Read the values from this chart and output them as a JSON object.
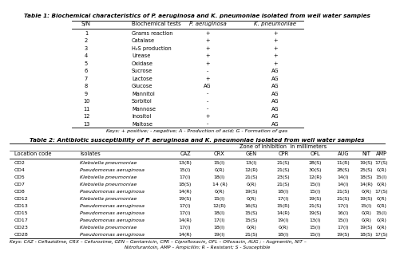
{
  "table1_title": "Table 1: Biochemical characteristics of P. aeruginosa and K. pneumoniae isolated from well water samples",
  "table1_headers": [
    "S/N",
    "Biochemical tests",
    "P. aeruginosa",
    "K. pneumoniae"
  ],
  "table1_rows": [
    [
      "1",
      "Grams reaction",
      "+",
      "+"
    ],
    [
      "2",
      "Catalase",
      "+",
      "+"
    ],
    [
      "3",
      "H₂S production",
      "+",
      "+"
    ],
    [
      "4",
      "Urease",
      "+",
      "+"
    ],
    [
      "5",
      "Oxidase",
      "+",
      "+"
    ],
    [
      "6",
      "Sucrose",
      "-",
      "AG"
    ],
    [
      "7",
      "Lactose",
      "+",
      "AG"
    ],
    [
      "8",
      "Glucose",
      "AG",
      "AG"
    ],
    [
      "9",
      "Mannitol",
      "-",
      "AG"
    ],
    [
      "10",
      "Sorbitol",
      "-",
      "AG"
    ],
    [
      "11",
      "Mannose",
      "-",
      "AG"
    ],
    [
      "12",
      "Inositol",
      "+",
      "AG"
    ],
    [
      "13",
      "Maltose",
      "-",
      "AG"
    ]
  ],
  "table1_keys": "Keys: + positive; - negative; A - Production of acid; G - Formation of gas",
  "table2_title": "Table 2: Antibiotic susceptibility of P. aeruginosa and K. pneumoniae isolated from well water samples",
  "table2_zone_header": "Zone of inhibition  in millimeters",
  "table2_col_headers": [
    "CAZ",
    "CRX",
    "GEN",
    "CPR",
    "OFL",
    "AUG",
    "NIT",
    "AMP"
  ],
  "table2_main_headers": [
    "Location code",
    "Isolates"
  ],
  "table2_rows": [
    [
      "OD2",
      "Klebsiella pneumoniae",
      "13(R)",
      "15(I)",
      "13(I)",
      "21(S)",
      "28(S)",
      "11(R)",
      "19(S)",
      "17(S)"
    ],
    [
      "OD4",
      "Pseudomonas aeruginosa",
      "15(I)",
      "0(R)",
      "12(R)",
      "21(S)",
      "30(S)",
      "28(S)",
      "25(S)",
      "0(R)"
    ],
    [
      "OD5",
      "Klebsiella pneumoniae",
      "17(I)",
      "18(I)",
      "21(S)",
      "23(S)",
      "12(R)",
      "14(I)",
      "18(S)",
      "15(I)"
    ],
    [
      "OD7",
      "Klebsiella pneumoniae",
      "18(S)",
      "14 (R)",
      "0(R)",
      "21(S)",
      "15(I)",
      "14(I)",
      "14(R)",
      "0(R)"
    ],
    [
      "OD8",
      "Pseudomonas aeruginosa",
      "14(R)",
      "0(R)",
      "19(S)",
      "18(I)",
      "15(I)",
      "21(S)",
      "0(R)",
      "17(S)"
    ],
    [
      "OD12",
      "Klebsiella pneumoniae",
      "19(S)",
      "15(I)",
      "0(R)",
      "17(I)",
      "19(S)",
      "21(S)",
      "19(S)",
      "0(R)"
    ],
    [
      "OD13",
      "Pseudomonas aeruginosa",
      "17(I)",
      "12(R)",
      "16(S)",
      "15(R)",
      "21(S)",
      "17(I)",
      "15(I)",
      "0(R)"
    ],
    [
      "OD15",
      "Pseudomonas aeruginosa",
      "17(I)",
      "18(I)",
      "15(S)",
      "14(R)",
      "19(S)",
      "16(I)",
      "0(R)",
      "15(I)"
    ],
    [
      "OD17",
      "Pseudomonas aeruginosa",
      "14(R)",
      "17(I)",
      "15(S)",
      "19(I)",
      "13(I)",
      "15(I)",
      "0(R)",
      "0(R)"
    ],
    [
      "OD23",
      "Klebsiella pneumoniae",
      "17(I)",
      "18(I)",
      "0(R)",
      "0(R)",
      "15(I)",
      "17(I)",
      "19(S)",
      "0(R)"
    ],
    [
      "OD28",
      "Pseudomonas aeruginosa",
      "14(R)",
      "19(I)",
      "21(S)",
      "18(I)",
      "15(I)",
      "19(S)",
      "18(S)",
      "17(S)"
    ]
  ],
  "table2_keys1": "Keys: CAZ - Ceftazidime, CRX – Cefuroxime, GEN – Gentamicin, CPR – Ciprofloxacin, OFL – Ofloxacin, AUG ; - Augmentin, NIT –",
  "table2_keys2": "Nitrofurantoin, AMP – Ampicillin; R – Resistant; S - Susceptible",
  "bg_color": "#ffffff",
  "text_color": "#000000"
}
